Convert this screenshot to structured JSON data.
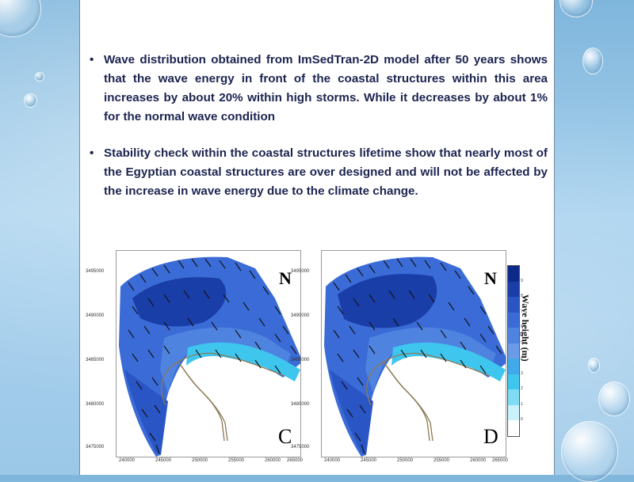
{
  "bullets": [
    "Wave distribution obtained from ImSedTran-2D model after 50 years shows that the wave energy in front of the coastal structures within this area increases by about 20% within high storms. While it decreases by about 1% for the normal wave condition",
    "Stability check within the coastal structures lifetime show that nearly most of the Egyptian coastal structures are over designed and will not be affected by the increase in wave energy due to the climate change."
  ],
  "maps": [
    {
      "label": "C",
      "north": "N"
    },
    {
      "label": "D",
      "north": "N"
    }
  ],
  "y_ticks": [
    "3495000",
    "3490000",
    "3485000",
    "3480000",
    "3475000"
  ],
  "x_ticks": [
    "240000",
    "245000",
    "250000",
    "255000",
    "260000",
    "265000"
  ],
  "legend": {
    "title": "Wave height (m)",
    "ticks": [
      "9",
      "8",
      "7",
      "6",
      "5",
      "4",
      "3",
      "2",
      "1",
      "0"
    ],
    "colors": [
      "#0d2a8a",
      "#1a3ea8",
      "#2a55c4",
      "#3a6bd6",
      "#4f83e0",
      "#6a9be6",
      "#3fa9ea",
      "#3fc6ee",
      "#7fdcf2",
      "#c8f1fa",
      "#ffffff"
    ]
  }
}
